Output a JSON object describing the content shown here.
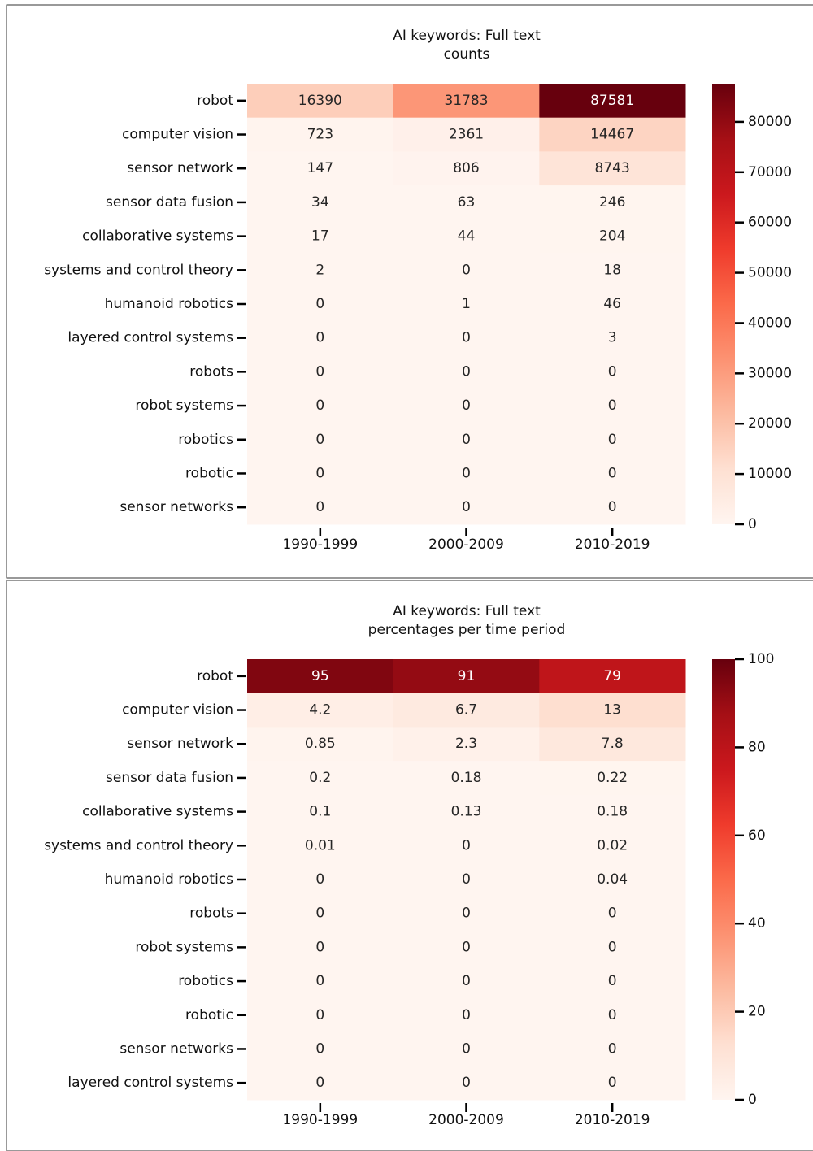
{
  "chart_data": [
    {
      "type": "heatmap",
      "title": [
        "AI keywords: Full text",
        "counts"
      ],
      "rows": [
        "robot",
        "computer vision",
        "sensor network",
        "sensor data fusion",
        "collaborative systems",
        "systems and control theory",
        "humanoid robotics",
        "layered control systems",
        "robots",
        "robot systems",
        "robotics",
        "robotic",
        "sensor networks"
      ],
      "categories": [
        "1990-1999",
        "2000-2009",
        "2010-2019"
      ],
      "values": [
        [
          16390,
          31783,
          87581
        ],
        [
          723,
          2361,
          14467
        ],
        [
          147,
          806,
          8743
        ],
        [
          34,
          63,
          246
        ],
        [
          17,
          44,
          204
        ],
        [
          2,
          0,
          18
        ],
        [
          0,
          1,
          46
        ],
        [
          0,
          0,
          3
        ],
        [
          0,
          0,
          0
        ],
        [
          0,
          0,
          0
        ],
        [
          0,
          0,
          0
        ],
        [
          0,
          0,
          0
        ],
        [
          0,
          0,
          0
        ]
      ],
      "colormap": "Reds",
      "clim": [
        0,
        87581
      ],
      "cticks": [
        0,
        10000,
        20000,
        30000,
        40000,
        50000,
        60000,
        70000,
        80000
      ]
    },
    {
      "type": "heatmap",
      "title": [
        "AI keywords: Full text",
        "percentages per time period"
      ],
      "rows": [
        "robot",
        "computer vision",
        "sensor network",
        "sensor data fusion",
        "collaborative systems",
        "systems and control theory",
        "humanoid robotics",
        "robots",
        "robot systems",
        "robotics",
        "robotic",
        "sensor networks",
        "layered control systems"
      ],
      "categories": [
        "1990-1999",
        "2000-2009",
        "2010-2019"
      ],
      "values": [
        [
          95,
          91,
          79
        ],
        [
          4.2,
          6.7,
          13
        ],
        [
          0.85,
          2.3,
          7.8
        ],
        [
          0.2,
          0.18,
          0.22
        ],
        [
          0.1,
          0.13,
          0.18
        ],
        [
          0.01,
          0,
          0.02
        ],
        [
          0,
          0,
          0.04
        ],
        [
          0,
          0,
          0
        ],
        [
          0,
          0,
          0
        ],
        [
          0,
          0,
          0
        ],
        [
          0,
          0,
          0
        ],
        [
          0,
          0,
          0
        ],
        [
          0,
          0,
          0
        ]
      ],
      "colormap": "Reds",
      "clim": [
        0,
        100
      ],
      "cticks": [
        0,
        20,
        40,
        60,
        80,
        100
      ]
    }
  ]
}
